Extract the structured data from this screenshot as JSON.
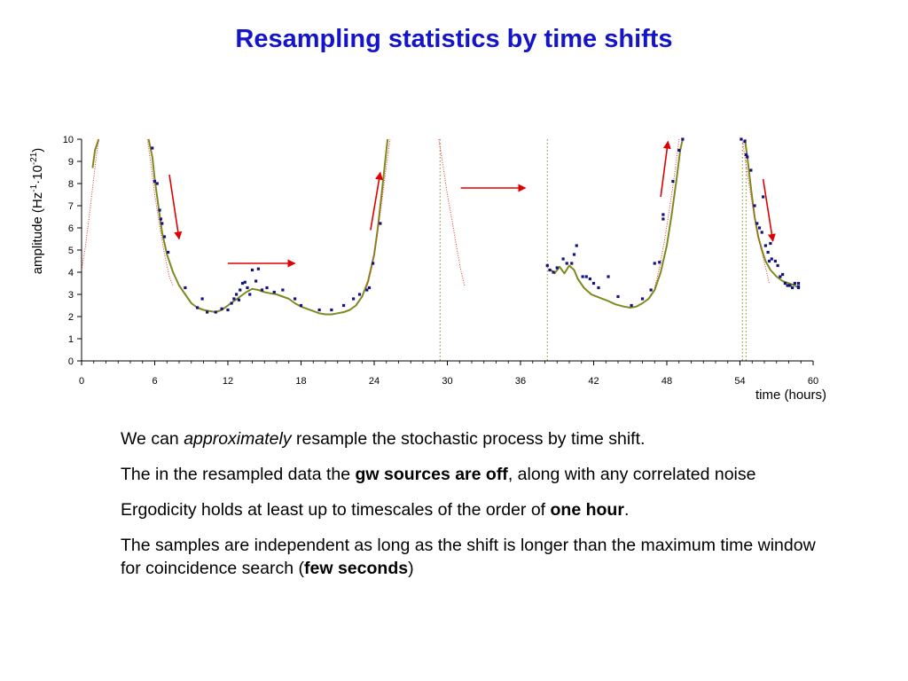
{
  "title": "Resampling statistics by time shifts",
  "chart_data": {
    "type": "line",
    "title": "",
    "xlabel": "time (hours)",
    "ylabel": {
      "base": "amplitude (Hz",
      "sup1": "-1",
      "mid": "·10",
      "sup2": "-21",
      "end": ")"
    },
    "xlim": [
      0,
      60
    ],
    "ylim": [
      0,
      10
    ],
    "xticks": [
      0,
      6,
      12,
      18,
      24,
      30,
      36,
      42,
      48,
      54,
      60
    ],
    "yticks": [
      0,
      1,
      2,
      3,
      4,
      5,
      6,
      7,
      8,
      9,
      10
    ],
    "grid": false,
    "legend": "none",
    "colors": {
      "trace": "#7f8a1e",
      "model": "#e03030",
      "points": "#141480",
      "arrow": "#e00000",
      "boundary": "#7f8a1e"
    },
    "series": [
      {
        "kind": "line",
        "segments": [
          [
            [
              0.9,
              8.7
            ],
            [
              1.1,
              9.5
            ],
            [
              1.4,
              10
            ]
          ],
          [
            [
              5.5,
              10
            ],
            [
              5.8,
              9.2
            ],
            [
              6,
              8.2
            ],
            [
              6.3,
              7
            ],
            [
              6.6,
              5.8
            ],
            [
              7,
              4.8
            ],
            [
              7.5,
              4
            ],
            [
              8,
              3.4
            ],
            [
              8.5,
              3
            ],
            [
              9,
              2.6
            ],
            [
              9.5,
              2.4
            ],
            [
              10,
              2.3
            ],
            [
              10.5,
              2.25
            ],
            [
              11,
              2.2
            ],
            [
              11.5,
              2.3
            ],
            [
              12,
              2.5
            ],
            [
              12.5,
              2.7
            ],
            [
              13,
              2.9
            ],
            [
              13.5,
              3.1
            ],
            [
              14,
              3.25
            ],
            [
              14.5,
              3.2
            ],
            [
              15,
              3.1
            ],
            [
              15.5,
              3.05
            ],
            [
              16,
              3
            ],
            [
              16.5,
              2.9
            ],
            [
              17,
              2.8
            ],
            [
              17.5,
              2.6
            ],
            [
              18,
              2.45
            ],
            [
              18.5,
              2.35
            ],
            [
              19,
              2.25
            ],
            [
              19.5,
              2.15
            ],
            [
              20,
              2.1
            ],
            [
              20.5,
              2.1
            ],
            [
              21,
              2.15
            ],
            [
              21.5,
              2.2
            ],
            [
              22,
              2.3
            ],
            [
              22.5,
              2.5
            ],
            [
              23,
              2.9
            ],
            [
              23.5,
              3.6
            ],
            [
              24,
              4.8
            ],
            [
              24.3,
              6
            ],
            [
              24.6,
              7.5
            ],
            [
              24.9,
              9
            ],
            [
              25.1,
              10
            ]
          ],
          [
            [
              38.5,
              4.1
            ],
            [
              38.8,
              3.95
            ],
            [
              39.2,
              4.25
            ],
            [
              39.6,
              3.95
            ],
            [
              40,
              4.3
            ],
            [
              40.4,
              4.1
            ],
            [
              40.7,
              3.7
            ],
            [
              41.2,
              3.3
            ],
            [
              41.8,
              3
            ],
            [
              42.5,
              2.85
            ],
            [
              43.2,
              2.7
            ],
            [
              43.8,
              2.55
            ],
            [
              44.5,
              2.45
            ],
            [
              45,
              2.4
            ],
            [
              45.5,
              2.45
            ],
            [
              46,
              2.6
            ],
            [
              46.5,
              2.8
            ],
            [
              47,
              3.2
            ],
            [
              47.5,
              4
            ],
            [
              48,
              5.2
            ],
            [
              48.4,
              6.6
            ],
            [
              48.8,
              8.2
            ],
            [
              49.1,
              9.5
            ],
            [
              49.3,
              10
            ]
          ],
          [
            [
              54.4,
              10
            ],
            [
              54.6,
              9.2
            ],
            [
              54.9,
              7.8
            ],
            [
              55.2,
              6.5
            ],
            [
              55.5,
              5.6
            ],
            [
              55.8,
              5
            ],
            [
              56.1,
              4.5
            ],
            [
              56.5,
              4.1
            ],
            [
              57,
              3.8
            ],
            [
              57.5,
              3.6
            ],
            [
              58,
              3.5
            ],
            [
              58.5,
              3.4
            ],
            [
              58.8,
              3.3
            ]
          ]
        ]
      },
      {
        "kind": "model",
        "segments": [
          [
            [
              0,
              4.1
            ],
            [
              0.3,
              5.1
            ],
            [
              0.6,
              6.4
            ],
            [
              0.9,
              7.8
            ],
            [
              1.2,
              9.2
            ],
            [
              1.4,
              10
            ]
          ],
          [
            [
              5.4,
              10
            ],
            [
              5.7,
              8.8
            ],
            [
              6,
              7.5
            ],
            [
              6.4,
              6.1
            ],
            [
              6.8,
              4.8
            ],
            [
              7.2,
              3.8
            ],
            [
              7.5,
              3.4
            ]
          ],
          [
            [
              23.4,
              3.3
            ],
            [
              23.8,
              4.2
            ],
            [
              24.2,
              5.5
            ],
            [
              24.6,
              7.1
            ],
            [
              25,
              8.8
            ],
            [
              25.3,
              10
            ]
          ],
          [
            [
              29.3,
              10
            ],
            [
              29.7,
              8.6
            ],
            [
              30,
              7.5
            ],
            [
              30.4,
              6.3
            ],
            [
              30.8,
              5
            ],
            [
              31.1,
              4.1
            ],
            [
              31.4,
              3.4
            ]
          ],
          [
            [
              47,
              3.3
            ],
            [
              47.4,
              4.2
            ],
            [
              47.8,
              5.4
            ],
            [
              48.2,
              6.8
            ],
            [
              48.6,
              8.3
            ],
            [
              49,
              10
            ]
          ],
          [
            [
              54.2,
              10
            ],
            [
              54.5,
              8.8
            ],
            [
              54.9,
              7.4
            ],
            [
              55.3,
              6.2
            ],
            [
              55.7,
              5.1
            ],
            [
              56.1,
              4.2
            ],
            [
              56.4,
              3.5
            ]
          ]
        ]
      },
      {
        "kind": "scatter",
        "points": [
          [
            5.8,
            9.6
          ],
          [
            6,
            8.1
          ],
          [
            6.2,
            8
          ],
          [
            6.4,
            6.8
          ],
          [
            6.5,
            6.4
          ],
          [
            6.6,
            6.2
          ],
          [
            6.8,
            5.6
          ],
          [
            7.1,
            4.9
          ],
          [
            8.5,
            3.3
          ],
          [
            9.5,
            2.4
          ],
          [
            9.9,
            2.8
          ],
          [
            10.3,
            2.2
          ],
          [
            11,
            2.2
          ],
          [
            11.5,
            2.35
          ],
          [
            12,
            2.3
          ],
          [
            12.3,
            2.6
          ],
          [
            12.5,
            2.8
          ],
          [
            12.7,
            3
          ],
          [
            12.9,
            2.75
          ],
          [
            13,
            3.2
          ],
          [
            13.2,
            3.5
          ],
          [
            13.4,
            3.55
          ],
          [
            13.6,
            3.3
          ],
          [
            13.8,
            3
          ],
          [
            14,
            4.1
          ],
          [
            14.3,
            3.6
          ],
          [
            14.5,
            4.15
          ],
          [
            14.8,
            3.2
          ],
          [
            15.2,
            3.3
          ],
          [
            15.8,
            3.1
          ],
          [
            16.5,
            3.2
          ],
          [
            17.5,
            2.8
          ],
          [
            18,
            2.5
          ],
          [
            19.5,
            2.3
          ],
          [
            20.5,
            2.3
          ],
          [
            21.5,
            2.5
          ],
          [
            22.3,
            2.8
          ],
          [
            22.8,
            3
          ],
          [
            23.4,
            3.2
          ],
          [
            23.6,
            3.3
          ],
          [
            23.9,
            4.4
          ],
          [
            24.5,
            6.2
          ],
          [
            38.2,
            4.3
          ],
          [
            38.4,
            4.1
          ],
          [
            38.7,
            4
          ],
          [
            39,
            4.2
          ],
          [
            39.5,
            4.6
          ],
          [
            39.8,
            4.4
          ],
          [
            40.2,
            4.4
          ],
          [
            40.4,
            4.8
          ],
          [
            40.6,
            5.2
          ],
          [
            41.1,
            3.8
          ],
          [
            41.4,
            3.8
          ],
          [
            41.7,
            3.7
          ],
          [
            42,
            3.5
          ],
          [
            42.4,
            3.3
          ],
          [
            43.2,
            3.8
          ],
          [
            44,
            2.9
          ],
          [
            45.1,
            2.5
          ],
          [
            46,
            2.8
          ],
          [
            46.7,
            3.2
          ],
          [
            47,
            4.4
          ],
          [
            47.4,
            4.45
          ],
          [
            47.7,
            6.4
          ],
          [
            47.7,
            6.6
          ],
          [
            48.5,
            8.1
          ],
          [
            49,
            9.5
          ],
          [
            49.3,
            10
          ],
          [
            54.1,
            10
          ],
          [
            54.4,
            9.9
          ],
          [
            54.5,
            9.3
          ],
          [
            54.6,
            9.2
          ],
          [
            54.9,
            8.6
          ],
          [
            55.2,
            7
          ],
          [
            55.4,
            6.2
          ],
          [
            55.6,
            6
          ],
          [
            55.8,
            5.8
          ],
          [
            55.9,
            7.4
          ],
          [
            56.1,
            5.2
          ],
          [
            56.3,
            4.9
          ],
          [
            56.4,
            4.5
          ],
          [
            56.5,
            5.3
          ],
          [
            56.6,
            4.6
          ],
          [
            56.9,
            4.5
          ],
          [
            57.1,
            4.3
          ],
          [
            57.3,
            3.8
          ],
          [
            57.5,
            3.9
          ],
          [
            57.7,
            3.5
          ],
          [
            57.9,
            3.4
          ],
          [
            58.1,
            3.4
          ],
          [
            58.3,
            3.3
          ],
          [
            58.5,
            3.5
          ],
          [
            58.8,
            3.5
          ],
          [
            58.8,
            3.35
          ],
          [
            58.8,
            3.3
          ]
        ]
      }
    ],
    "boundaries": [
      29.4,
      38.2,
      54.2,
      54.5
    ],
    "arrows": [
      {
        "from": [
          7.2,
          8.4
        ],
        "to": [
          8,
          5.5
        ]
      },
      {
        "from": [
          12,
          4.4
        ],
        "to": [
          17.5,
          4.4
        ]
      },
      {
        "from": [
          23.7,
          5.9
        ],
        "to": [
          24.5,
          8.5
        ]
      },
      {
        "from": [
          31.1,
          7.8
        ],
        "to": [
          36.4,
          7.8
        ]
      },
      {
        "from": [
          47.5,
          7.4
        ],
        "to": [
          48.1,
          9.9
        ]
      },
      {
        "from": [
          55.9,
          8.2
        ],
        "to": [
          56.7,
          5.4
        ]
      }
    ]
  },
  "body": [
    {
      "id": "p1",
      "parts": [
        {
          "t": "We can ",
          "s": ""
        },
        {
          "t": "approximately",
          "s": "i"
        },
        {
          "t": " resample the stochastic process by time shift.",
          "s": ""
        }
      ]
    },
    {
      "id": "p2",
      "parts": [
        {
          "t": "The in the resampled data the ",
          "s": ""
        },
        {
          "t": "gw sources are off",
          "s": "b"
        },
        {
          "t": ", along with any correlated noise",
          "s": ""
        }
      ]
    },
    {
      "id": "p3",
      "parts": [
        {
          "t": "Ergodicity holds at least up to timescales of the order of ",
          "s": ""
        },
        {
          "t": "one hour",
          "s": "b"
        },
        {
          "t": ".",
          "s": ""
        }
      ]
    },
    {
      "id": "p4",
      "parts": [
        {
          "t": "The samples are independent as long as the shift is longer than the maximum time window for coincidence search (",
          "s": ""
        },
        {
          "t": "few seconds",
          "s": "b"
        },
        {
          "t": ")",
          "s": ""
        }
      ]
    }
  ]
}
